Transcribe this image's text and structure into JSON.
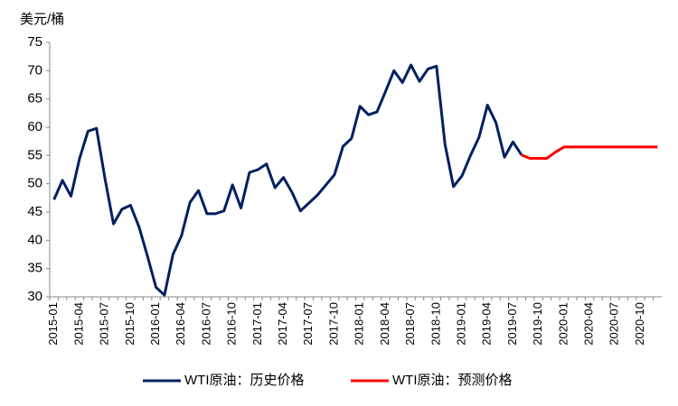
{
  "chart_data": {
    "type": "line",
    "y_label": "美元/桶",
    "categories": [
      "2015-01",
      null,
      null,
      "2015-04",
      null,
      null,
      "2015-07",
      null,
      null,
      "2015-10",
      null,
      null,
      "2016-01",
      null,
      null,
      "2016-04",
      null,
      null,
      "2016-07",
      null,
      null,
      "2016-10",
      null,
      null,
      "2017-01",
      null,
      null,
      "2017-04",
      null,
      null,
      "2017-07",
      null,
      null,
      "2017-10",
      null,
      null,
      "2018-01",
      null,
      null,
      "2018-04",
      null,
      null,
      "2018-07",
      null,
      null,
      "2018-10",
      null,
      null,
      "2019-01",
      null,
      null,
      "2019-04",
      null,
      null,
      "2019-07",
      null,
      null,
      "2019-10",
      null,
      null,
      "2020-01",
      null,
      null,
      "2020-04",
      null,
      null,
      "2020-07",
      null,
      null,
      "2020-10",
      null,
      null
    ],
    "series": [
      {
        "name": "WTI原油：历史价格",
        "color": "#002060",
        "values": [
          47.2,
          50.6,
          47.8,
          54.4,
          59.3,
          59.8,
          50.9,
          42.9,
          45.5,
          46.2,
          42.4,
          37.2,
          31.7,
          30.3,
          37.5,
          40.8,
          46.7,
          48.8,
          44.7,
          44.7,
          45.2,
          49.8,
          45.7,
          52.0,
          52.5,
          53.5,
          49.3,
          51.1,
          48.5,
          45.2,
          46.6,
          48.0,
          49.8,
          51.6,
          56.6,
          58.0,
          63.7,
          62.2,
          62.7,
          66.3,
          70.0,
          67.9,
          71.0,
          68.1,
          70.3,
          70.8,
          57.0,
          49.5,
          51.4,
          55.0,
          58.2,
          63.9,
          60.8,
          54.7,
          57.4,
          55.1,
          null,
          null,
          null,
          null,
          null,
          null,
          null,
          null,
          null,
          null,
          null,
          null,
          null,
          null,
          null,
          null
        ]
      },
      {
        "name": "WTI原油：预测价格",
        "color": "#ff0000",
        "values": [
          null,
          null,
          null,
          null,
          null,
          null,
          null,
          null,
          null,
          null,
          null,
          null,
          null,
          null,
          null,
          null,
          null,
          null,
          null,
          null,
          null,
          null,
          null,
          null,
          null,
          null,
          null,
          null,
          null,
          null,
          null,
          null,
          null,
          null,
          null,
          null,
          null,
          null,
          null,
          null,
          null,
          null,
          null,
          null,
          null,
          null,
          null,
          null,
          null,
          null,
          null,
          null,
          null,
          null,
          null,
          55.1,
          54.5,
          54.5,
          54.5,
          55.6,
          56.5,
          56.5,
          56.5,
          56.5,
          56.5,
          56.5,
          56.5,
          56.5,
          56.5,
          56.5,
          56.5,
          56.5
        ]
      }
    ],
    "ylim": [
      30,
      75
    ],
    "yticks": [
      30,
      35,
      40,
      45,
      50,
      55,
      60,
      65,
      70,
      75
    ],
    "grid": false
  }
}
